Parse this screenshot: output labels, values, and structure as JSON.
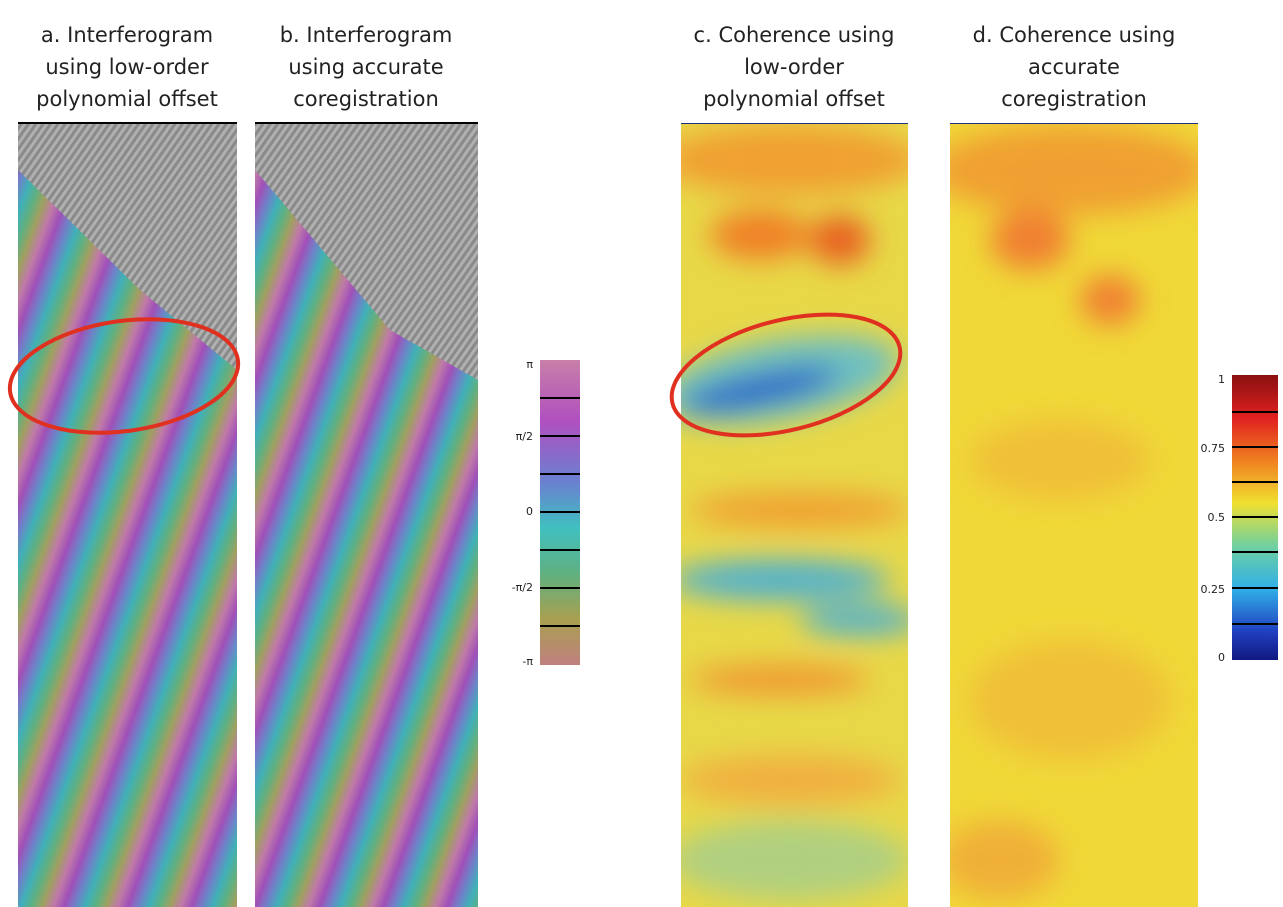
{
  "panels": [
    {
      "title_lines": [
        "a. Interferogram",
        "using low-order",
        "polynomial offset"
      ]
    },
    {
      "title_lines": [
        "b. Interferogram",
        "using accurate",
        "coregistration"
      ]
    },
    {
      "title_lines": [
        "c. Coherence using",
        "low-order",
        "polynomial offset"
      ]
    },
    {
      "title_lines": [
        "d. Coherence using",
        "accurate",
        "coregistration"
      ]
    }
  ],
  "phase_colorbar": {
    "tick_labels": [
      "π",
      "π/2",
      "0",
      "-π/2",
      "-π"
    ]
  },
  "coherence_colorbar": {
    "tick_labels": [
      "1",
      "0.75",
      "0.5",
      "0.25",
      "0"
    ]
  }
}
